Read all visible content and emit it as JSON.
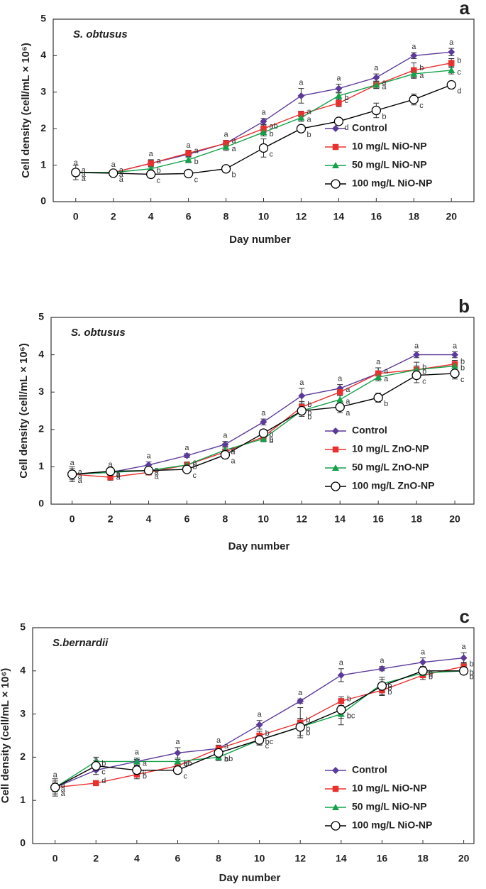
{
  "chart_data": [
    {
      "type": "line",
      "panel": "a",
      "title": "S. obtusus",
      "xlabel": "Day number",
      "ylabel": "Cell density (cell/mL × 10⁶)",
      "x": [
        0,
        2,
        4,
        6,
        8,
        10,
        12,
        14,
        16,
        18,
        20
      ],
      "xlim": [
        -1.2,
        21.2
      ],
      "xticks": [
        0,
        2,
        4,
        6,
        8,
        10,
        12,
        14,
        16,
        18,
        20
      ],
      "ylim": [
        0,
        5
      ],
      "yticks": [
        0,
        1,
        2,
        3,
        4,
        5
      ],
      "legend": "lower right",
      "series": [
        {
          "name": "Control",
          "color": "#5b3a9a",
          "marker": "diamond",
          "values": [
            0.8,
            0.8,
            1.05,
            1.3,
            1.6,
            2.2,
            2.9,
            3.1,
            3.4,
            4.0,
            4.1
          ],
          "errors": [
            0.1,
            0.05,
            0.1,
            0.08,
            0.08,
            0.08,
            0.2,
            0.12,
            0.1,
            0.08,
            0.1
          ],
          "letters": [
            "a",
            "a",
            "a",
            "a",
            "a",
            "a",
            "a",
            "a",
            "a",
            "a",
            "a"
          ]
        },
        {
          "name": "10 mg/L NiO-NP",
          "color": "#e8312f",
          "marker": "square",
          "values": [
            0.8,
            0.8,
            1.05,
            1.33,
            1.6,
            2.0,
            2.4,
            2.7,
            3.2,
            3.6,
            3.8
          ],
          "errors": [
            0.08,
            0.05,
            0.08,
            0.08,
            0.08,
            0.1,
            0.08,
            0.1,
            0.1,
            0.2,
            0.12
          ],
          "letters": [
            "a",
            "a",
            "a",
            "a",
            "a",
            "ab",
            "a",
            "c",
            "a",
            "b",
            "b"
          ]
        },
        {
          "name": "50 mg/L NiO-NP",
          "color": "#14a14a",
          "marker": "triangle",
          "values": [
            0.8,
            0.8,
            0.9,
            1.15,
            1.5,
            1.9,
            2.3,
            2.9,
            3.2,
            3.5,
            3.6
          ],
          "errors": [
            0.08,
            0.05,
            0.08,
            0.08,
            0.1,
            0.1,
            0.1,
            0.1,
            0.1,
            0.12,
            0.1
          ],
          "letters": [
            "a",
            "a",
            "b",
            "b",
            "a",
            "b",
            "a",
            "b",
            "a",
            "a",
            "c"
          ]
        },
        {
          "name": "100 mg/L NiO-NP",
          "color": "#000000",
          "marker": "circle",
          "values": [
            0.8,
            0.78,
            0.75,
            0.77,
            0.9,
            1.47,
            2.0,
            2.2,
            2.5,
            2.8,
            3.2
          ],
          "errors": [
            0.2,
            0.08,
            0.1,
            0.05,
            0.05,
            0.25,
            0.1,
            0.05,
            0.2,
            0.15,
            0.1
          ],
          "letters": [
            "a",
            "a",
            "c",
            "c",
            "b",
            "c",
            "b",
            "d",
            "b",
            "c",
            "d"
          ]
        }
      ]
    },
    {
      "type": "line",
      "panel": "b",
      "title": "S. obtusus",
      "xlabel": "Day number",
      "ylabel": "Cell density (cell/mL × 10⁶)",
      "x": [
        0,
        2,
        4,
        6,
        8,
        10,
        12,
        14,
        16,
        18,
        20
      ],
      "xlim": [
        -1.1,
        21.0
      ],
      "xticks": [
        0,
        2,
        4,
        6,
        8,
        10,
        12,
        14,
        16,
        18,
        20
      ],
      "ylim": [
        0,
        5
      ],
      "yticks": [
        0,
        1,
        2,
        3,
        4,
        5
      ],
      "legend": "lower right",
      "series": [
        {
          "name": "Control",
          "color": "#5b3a9a",
          "marker": "diamond",
          "values": [
            0.8,
            0.85,
            1.05,
            1.3,
            1.6,
            2.2,
            2.9,
            3.1,
            3.5,
            4.0,
            4.0
          ],
          "errors": [
            0.15,
            0.05,
            0.08,
            0.05,
            0.08,
            0.08,
            0.2,
            0.1,
            0.15,
            0.08,
            0.08
          ],
          "letters": [
            "a",
            "a",
            "a",
            "a",
            "a",
            "a",
            "a",
            "a",
            "a",
            "a",
            "a"
          ]
        },
        {
          "name": "10 mg/L ZnO-NP",
          "color": "#e8312f",
          "marker": "square",
          "values": [
            0.8,
            0.72,
            0.85,
            1.05,
            1.4,
            1.8,
            2.6,
            3.0,
            3.5,
            3.6,
            3.75
          ],
          "errors": [
            0.1,
            0.08,
            0.05,
            0.08,
            0.08,
            0.1,
            0.15,
            0.1,
            0.15,
            0.2,
            0.1
          ],
          "letters": [
            "a",
            "a",
            "a",
            "a",
            "a",
            "b",
            "b",
            "a",
            "a",
            "b",
            "b"
          ]
        },
        {
          "name": "50 mg/L ZnO-NP",
          "color": "#14a14a",
          "marker": "triangle",
          "values": [
            0.8,
            0.85,
            0.9,
            1.05,
            1.45,
            1.75,
            2.5,
            2.8,
            3.4,
            3.6,
            3.7
          ],
          "errors": [
            0.1,
            0.05,
            0.05,
            0.05,
            0.1,
            0.08,
            0.1,
            0.1,
            0.1,
            0.1,
            0.1
          ],
          "letters": [
            "a",
            "a",
            "a",
            "b",
            "a",
            "b",
            "b",
            "a",
            "a",
            "b",
            "b"
          ]
        },
        {
          "name": "100 mg/L ZnO-NP",
          "color": "#000000",
          "marker": "circle",
          "values": [
            0.8,
            0.88,
            0.9,
            0.93,
            1.32,
            1.9,
            2.5,
            2.6,
            2.85,
            3.45,
            3.5
          ],
          "errors": [
            0.2,
            0.05,
            0.05,
            0.05,
            0.1,
            0.1,
            0.15,
            0.15,
            0.12,
            0.2,
            0.15
          ],
          "letters": [
            "a",
            "a",
            "a",
            "c",
            "a",
            "b",
            "b",
            "a",
            "b",
            "c",
            "c"
          ]
        }
      ]
    },
    {
      "type": "line",
      "panel": "c",
      "title": "S.bernardii",
      "xlabel": "Day number",
      "ylabel": "Cell density (cell/mL × 10⁶)",
      "x": [
        0,
        2,
        4,
        6,
        8,
        10,
        12,
        14,
        16,
        18,
        20
      ],
      "xlim": [
        -1.1,
        20.5
      ],
      "xticks": [
        0,
        2,
        4,
        6,
        8,
        10,
        12,
        14,
        16,
        18,
        20
      ],
      "ylim": [
        0,
        5
      ],
      "yticks": [
        0,
        1,
        2,
        3,
        4,
        5
      ],
      "legend": "lower right",
      "series": [
        {
          "name": "Control",
          "color": "#5b3a9a",
          "marker": "diamond",
          "values": [
            1.3,
            1.7,
            1.9,
            2.1,
            2.2,
            2.75,
            3.3,
            3.9,
            4.05,
            4.2,
            4.3
          ],
          "errors": [
            0.15,
            0.1,
            0.08,
            0.12,
            0.05,
            0.1,
            0.05,
            0.15,
            0.05,
            0.1,
            0.12
          ],
          "letters": [
            "a",
            "a",
            "a",
            "a",
            "a",
            "a",
            "a",
            "a",
            "a",
            "a",
            "a"
          ]
        },
        {
          "name": "10 mg/L NiO-NP",
          "color": "#e8312f",
          "marker": "square",
          "values": [
            1.3,
            1.4,
            1.6,
            1.8,
            2.2,
            2.5,
            2.8,
            3.3,
            3.55,
            3.9,
            4.1
          ],
          "errors": [
            0.1,
            0.05,
            0.1,
            0.05,
            0.08,
            0.1,
            0.35,
            0.1,
            0.12,
            0.1,
            0.1
          ],
          "letters": [
            "a",
            "d",
            "c",
            "ab",
            "a",
            "b",
            "b",
            "b",
            "b",
            "b",
            "b"
          ]
        },
        {
          "name": "50 mg/L NiO-NP",
          "color": "#14a14a",
          "marker": "triangle",
          "values": [
            1.3,
            1.9,
            1.9,
            1.9,
            2.0,
            2.4,
            2.7,
            3.0,
            3.7,
            3.95,
            4.0
          ],
          "errors": [
            0.1,
            0.1,
            0.05,
            0.05,
            0.08,
            0.1,
            0.2,
            0.25,
            0.1,
            0.1,
            0.05
          ],
          "letters": [
            "a",
            "b",
            "a",
            "bc",
            "b",
            "bc",
            "b",
            "bc",
            "b",
            "b",
            "b"
          ]
        },
        {
          "name": "100 mg/L NiO-NP",
          "color": "#000000",
          "marker": "circle",
          "values": [
            1.3,
            1.8,
            1.7,
            1.7,
            2.1,
            2.4,
            2.7,
            3.1,
            3.65,
            4.0,
            4.0
          ],
          "errors": [
            0.2,
            0.12,
            0.1,
            0.05,
            0.1,
            0.12,
            0.2,
            0.2,
            0.2,
            0.1,
            0.05
          ],
          "letters": [
            "a",
            "c",
            "b",
            "c",
            "ab",
            "c",
            "b",
            "c",
            "b",
            "b",
            "b"
          ]
        }
      ]
    }
  ]
}
